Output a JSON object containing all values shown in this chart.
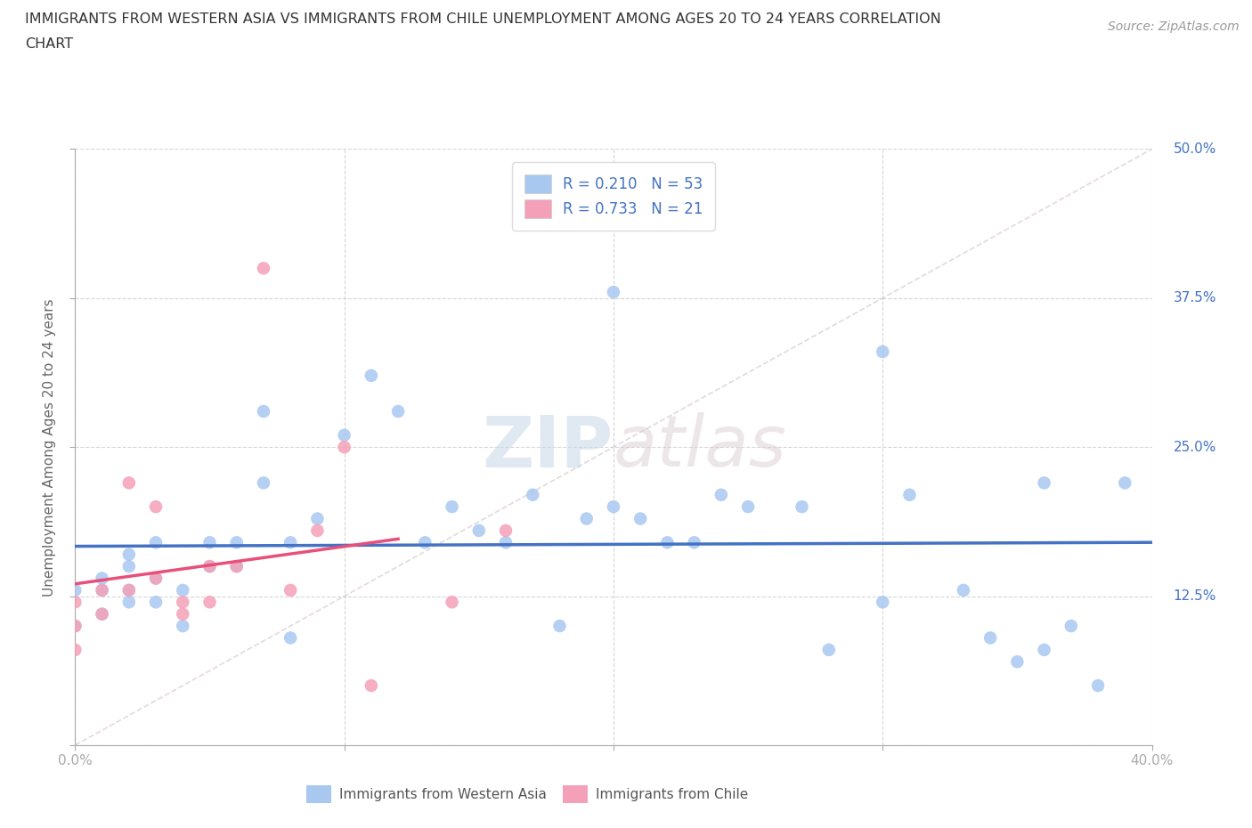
{
  "title_line1": "IMMIGRANTS FROM WESTERN ASIA VS IMMIGRANTS FROM CHILE UNEMPLOYMENT AMONG AGES 20 TO 24 YEARS CORRELATION",
  "title_line2": "CHART",
  "source_text": "Source: ZipAtlas.com",
  "ylabel": "Unemployment Among Ages 20 to 24 years",
  "xlim": [
    0.0,
    0.4
  ],
  "ylim": [
    0.0,
    0.5
  ],
  "xticks": [
    0.0,
    0.1,
    0.2,
    0.3,
    0.4
  ],
  "yticks": [
    0.0,
    0.125,
    0.25,
    0.375,
    0.5
  ],
  "western_asia_color": "#a8c8f0",
  "chile_color": "#f4a0b8",
  "western_asia_line_color": "#4472c4",
  "chile_line_color": "#e8507a",
  "diag_line_color": "#d0c0c8",
  "legend_text_color": "#4472c4",
  "yticklabel_color": "#4472c4",
  "R_western_asia": 0.21,
  "N_western_asia": 53,
  "R_chile": 0.733,
  "N_chile": 21,
  "watermark": "ZIPatlas",
  "western_asia_x": [
    0.0,
    0.0,
    0.01,
    0.01,
    0.01,
    0.02,
    0.02,
    0.02,
    0.02,
    0.03,
    0.03,
    0.03,
    0.04,
    0.04,
    0.05,
    0.05,
    0.06,
    0.06,
    0.07,
    0.07,
    0.08,
    0.08,
    0.09,
    0.1,
    0.11,
    0.12,
    0.13,
    0.14,
    0.15,
    0.16,
    0.17,
    0.18,
    0.19,
    0.2,
    0.2,
    0.21,
    0.22,
    0.23,
    0.24,
    0.25,
    0.27,
    0.28,
    0.3,
    0.3,
    0.31,
    0.33,
    0.34,
    0.35,
    0.36,
    0.37,
    0.38,
    0.39,
    0.36
  ],
  "western_asia_y": [
    0.1,
    0.13,
    0.13,
    0.14,
    0.11,
    0.12,
    0.15,
    0.13,
    0.16,
    0.14,
    0.12,
    0.17,
    0.13,
    0.1,
    0.17,
    0.15,
    0.17,
    0.15,
    0.28,
    0.22,
    0.17,
    0.09,
    0.19,
    0.26,
    0.31,
    0.28,
    0.17,
    0.2,
    0.18,
    0.17,
    0.21,
    0.1,
    0.19,
    0.2,
    0.38,
    0.19,
    0.17,
    0.17,
    0.21,
    0.2,
    0.2,
    0.08,
    0.12,
    0.33,
    0.21,
    0.13,
    0.09,
    0.07,
    0.22,
    0.1,
    0.05,
    0.22,
    0.08
  ],
  "chile_x": [
    0.0,
    0.0,
    0.0,
    0.01,
    0.01,
    0.02,
    0.02,
    0.03,
    0.03,
    0.04,
    0.04,
    0.05,
    0.05,
    0.06,
    0.07,
    0.08,
    0.09,
    0.1,
    0.11,
    0.14,
    0.16
  ],
  "chile_y": [
    0.08,
    0.1,
    0.12,
    0.11,
    0.13,
    0.13,
    0.22,
    0.14,
    0.2,
    0.12,
    0.11,
    0.15,
    0.12,
    0.15,
    0.4,
    0.13,
    0.18,
    0.25,
    0.05,
    0.12,
    0.18
  ]
}
